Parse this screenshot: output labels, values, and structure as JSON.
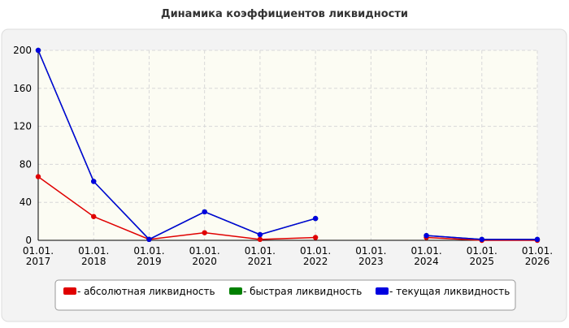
{
  "chart_data": {
    "type": "line",
    "title": "Динамика коэффициентов ликвидности",
    "categories": [
      "01.01.\n2017",
      "01.01.\n2018",
      "01.01.\n2019",
      "01.01.\n2020",
      "01.01.\n2021",
      "01.01.\n2022",
      "01.01.\n2023",
      "01.01.\n2024",
      "01.01.\n2025",
      "01.01.\n2026"
    ],
    "series": [
      {
        "name": "- абсолютная ликвидность",
        "color": "#e00000",
        "values": [
          67,
          25,
          1,
          8,
          1,
          3,
          null,
          3,
          0,
          0
        ]
      },
      {
        "name": "- быстрая ликвидность",
        "color": "#008000",
        "values": [
          200,
          62,
          1,
          30,
          6,
          23,
          null,
          5,
          1,
          1
        ]
      },
      {
        "name": "- текущая ликвидность",
        "color": "#0000e0",
        "values": [
          200,
          62,
          1,
          30,
          6,
          23,
          null,
          5,
          1,
          1
        ]
      }
    ],
    "ylim": [
      0,
      200
    ],
    "yticks": [
      0,
      40,
      80,
      120,
      160,
      200
    ],
    "grid": true
  }
}
